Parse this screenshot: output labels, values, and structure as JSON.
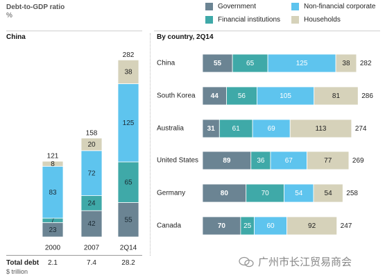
{
  "header": {
    "title": "Debt-to-GDP ratio",
    "unit": "%"
  },
  "legend": [
    {
      "key": "gov",
      "label": "Government",
      "color": "#6b8493"
    },
    {
      "key": "nfc",
      "label": "Non-financial corporate",
      "color": "#5ec4ee"
    },
    {
      "key": "fin",
      "label": "Financial institutions",
      "color": "#3fa9a8"
    },
    {
      "key": "hh",
      "label": "Households",
      "color": "#d6d2ba"
    }
  ],
  "left_panel": {
    "title": "China"
  },
  "right_panel": {
    "title": "By country, 2Q14"
  },
  "footer": {
    "total_label": "Total debt",
    "unit_label": "$ trillion",
    "totals": [
      "2.1",
      "7.4",
      "28.2"
    ]
  },
  "watermark": {
    "text": "广州市长江贸易商会"
  },
  "chart_data": [
    {
      "type": "bar",
      "stacked": true,
      "title": "China",
      "categories": [
        "2000",
        "2007",
        "2Q14"
      ],
      "series": [
        {
          "name": "Government",
          "values": [
            23,
            42,
            55
          ]
        },
        {
          "name": "Financial institutions",
          "values": [
            7,
            24,
            65
          ]
        },
        {
          "name": "Non-financial corporate",
          "values": [
            83,
            72,
            125
          ]
        },
        {
          "name": "Households",
          "values": [
            8,
            20,
            38
          ]
        }
      ],
      "totals": [
        121,
        158,
        282
      ]
    },
    {
      "type": "bar",
      "orientation": "horizontal",
      "stacked": true,
      "title": "By country, 2Q14",
      "categories": [
        "China",
        "South Korea",
        "Australia",
        "United States",
        "Germany",
        "Canada"
      ],
      "series": [
        {
          "name": "Government",
          "values": [
            55,
            44,
            31,
            89,
            80,
            70
          ]
        },
        {
          "name": "Financial institutions",
          "values": [
            65,
            56,
            61,
            36,
            70,
            25
          ]
        },
        {
          "name": "Non-financial corporate",
          "values": [
            125,
            105,
            69,
            67,
            54,
            60
          ]
        },
        {
          "name": "Households",
          "values": [
            38,
            81,
            113,
            77,
            54,
            92
          ]
        }
      ],
      "totals": [
        282,
        286,
        274,
        269,
        258,
        247
      ]
    }
  ]
}
